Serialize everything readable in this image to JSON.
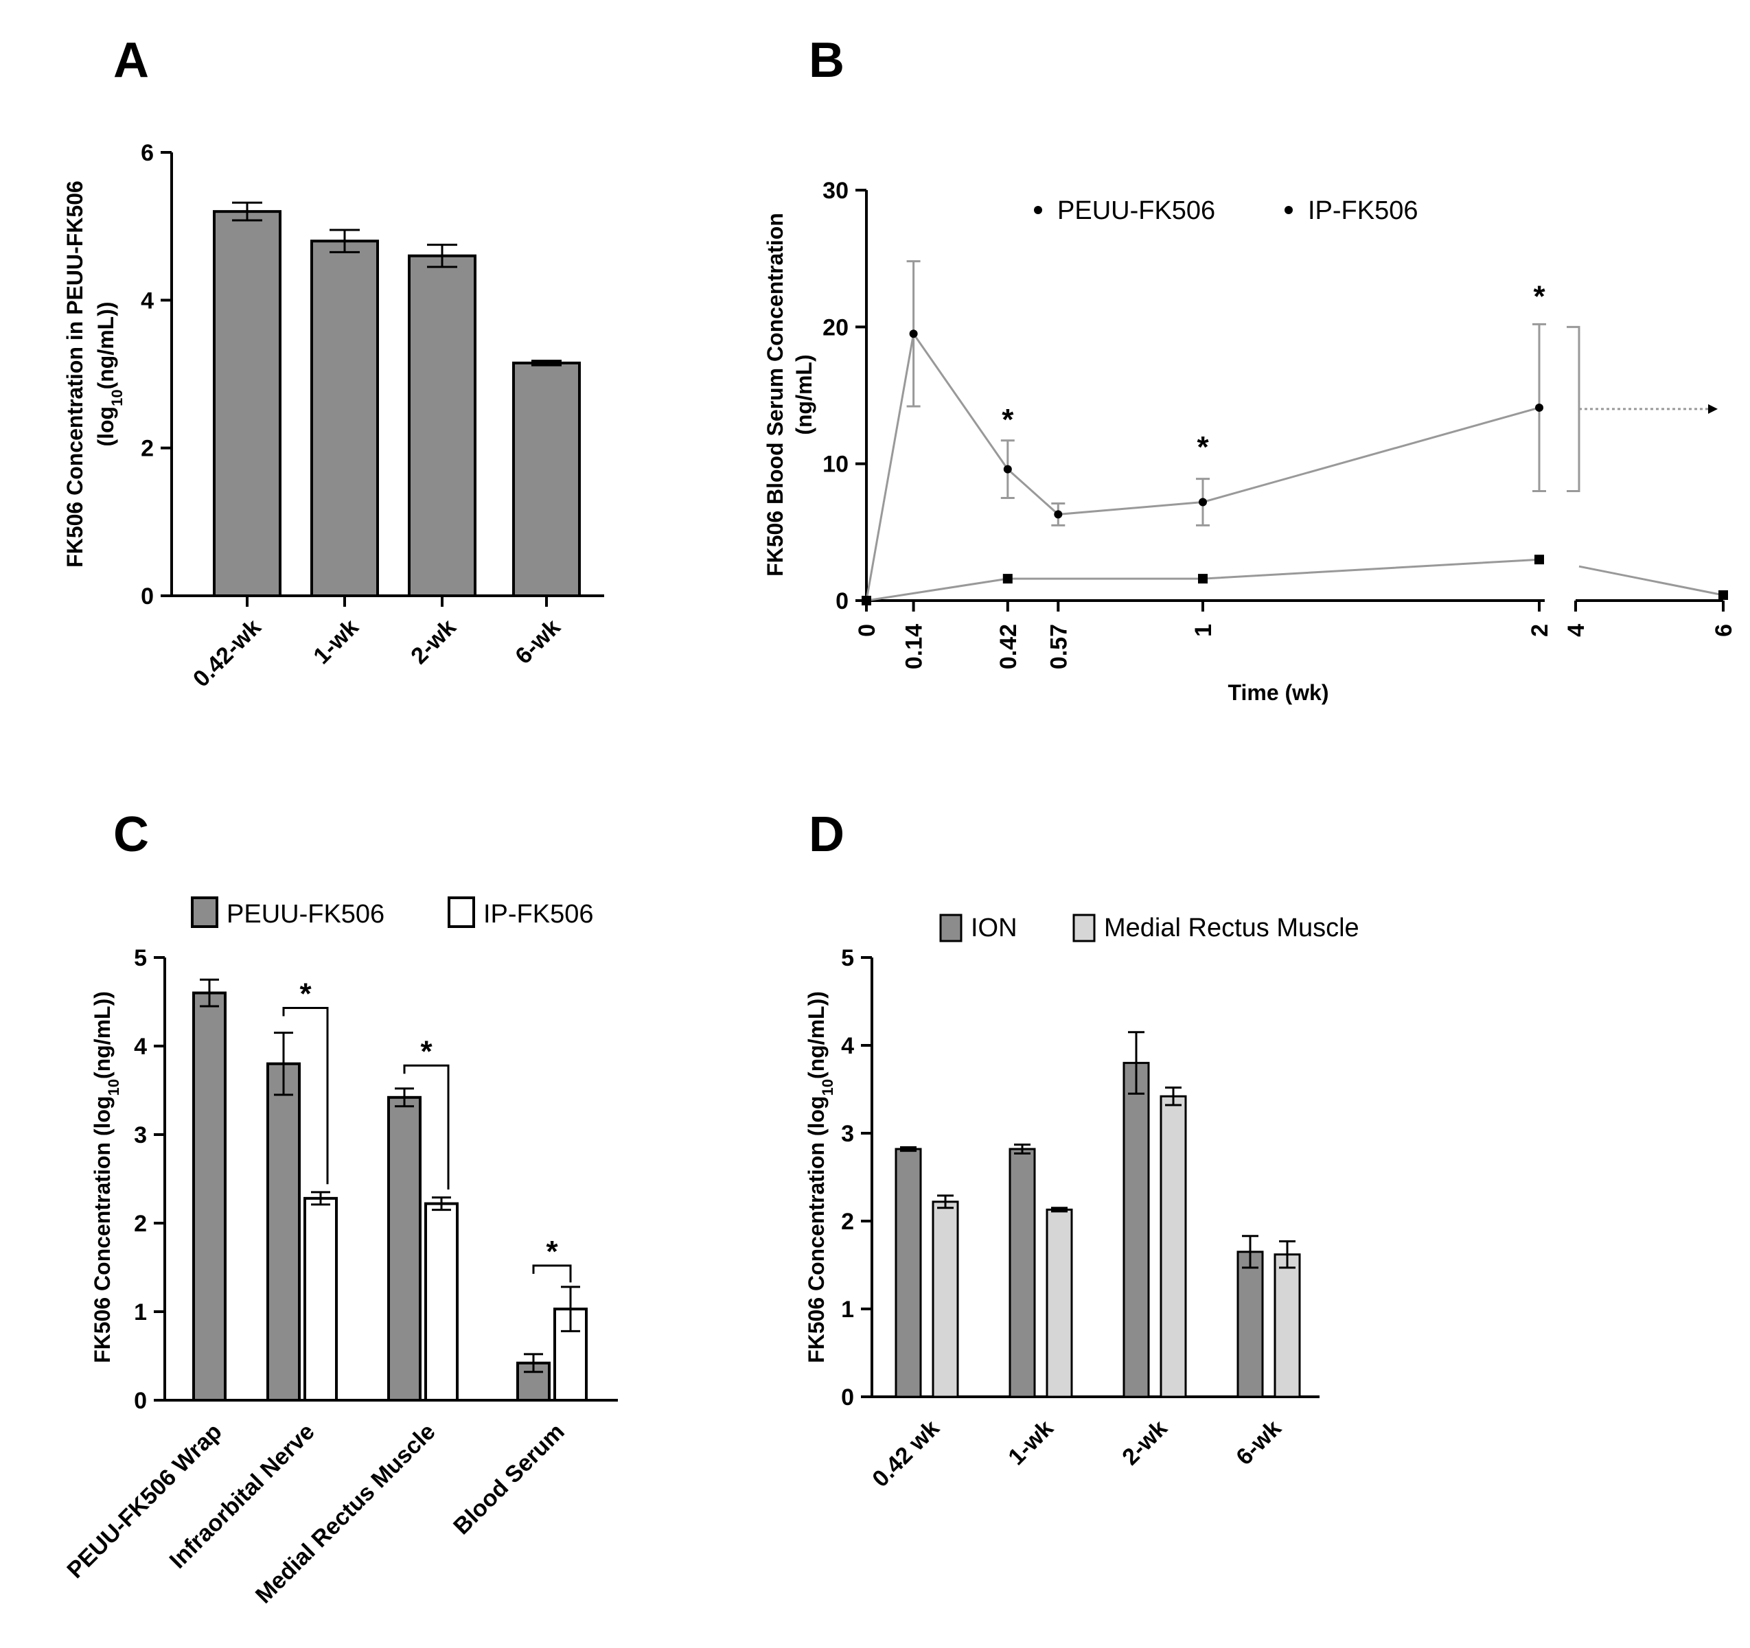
{
  "chart_data": [
    {
      "panel": "A",
      "type": "bar",
      "categories": [
        "0.42-wk",
        "1-wk",
        "2-wk",
        "6-wk"
      ],
      "values": [
        5.2,
        4.8,
        4.6,
        3.15
      ],
      "errors": [
        0.12,
        0.15,
        0.15,
        0.03
      ],
      "ylabel_line1": "FK506 Concentration in PEUU-FK506",
      "ylabel_line2": "(log",
      "ylabel_sub": "10",
      "ylabel_line2_end": "(ng/mL))",
      "ylim": [
        0,
        6
      ],
      "yticks": [
        "0",
        "2",
        "4",
        "6"
      ],
      "colors": {
        "bar": "#8c8c8c"
      }
    },
    {
      "panel": "B",
      "type": "line",
      "ylabel_line1": "FK506 Blood Serum Concentration",
      "ylabel_line2": "(ng/mL)",
      "xlabel": "Time (wk)",
      "ylim": [
        0,
        30
      ],
      "yticks": [
        "0",
        "10",
        "20",
        "30"
      ],
      "xticks": [
        "0",
        "0.14",
        "0.42",
        "0.57",
        "1",
        "2",
        "4",
        "6"
      ],
      "series": [
        {
          "name": "PEUU-FK506",
          "x": [
            0,
            0.42,
            1,
            2,
            6
          ],
          "y": [
            0,
            1.6,
            1.6,
            3.0,
            0.4
          ],
          "errors": [
            0,
            0.2,
            0.3,
            0.4,
            0.1
          ]
        },
        {
          "name": "IP-FK506",
          "x": [
            0,
            0.14,
            0.42,
            0.57,
            1,
            2
          ],
          "y": [
            0,
            19.5,
            9.6,
            6.3,
            7.2,
            14.1
          ],
          "errors": [
            0,
            5.3,
            2.1,
            0.8,
            1.7,
            6.1
          ],
          "extrapolated_to": 6
        }
      ],
      "significance": [
        {
          "x": 0.42,
          "label": "*"
        },
        {
          "x": 1,
          "label": "*"
        },
        {
          "x": 2,
          "label": "*"
        }
      ]
    },
    {
      "panel": "C",
      "type": "bar",
      "categories": [
        "PEUU-FK506 Wrap",
        "Infraorbital Nerve",
        "Medial Rectus Muscle",
        "Blood Serum"
      ],
      "series": [
        {
          "name": "PEUU-FK506",
          "values": [
            4.6,
            3.8,
            3.42,
            0.42
          ],
          "errors": [
            0.15,
            0.35,
            0.1,
            0.1
          ],
          "color": "#8c8c8c"
        },
        {
          "name": "IP-FK506",
          "values": [
            null,
            2.28,
            2.22,
            1.03
          ],
          "errors": [
            null,
            0.07,
            0.07,
            0.25
          ],
          "color": "#ffffff"
        }
      ],
      "significance": [
        {
          "category": "Infraorbital Nerve",
          "label": "*"
        },
        {
          "category": "Medial Rectus Muscle",
          "label": "*"
        },
        {
          "category": "Blood Serum",
          "label": "*"
        }
      ],
      "ylabel_start": "FK506 Concentration (log",
      "ylabel_sub": "10",
      "ylabel_end": "(ng/mL))",
      "ylim": [
        0,
        5
      ],
      "yticks": [
        "0",
        "1",
        "2",
        "3",
        "4",
        "5"
      ],
      "legend_position": "top"
    },
    {
      "panel": "D",
      "type": "bar",
      "categories": [
        "0.42 wk",
        "1-wk",
        "2-wk",
        "6-wk"
      ],
      "series": [
        {
          "name": "ION",
          "values": [
            2.82,
            2.82,
            3.8,
            1.65
          ],
          "errors": [
            0.02,
            0.05,
            0.35,
            0.18
          ],
          "color": "#8c8c8c"
        },
        {
          "name": "Medial Rectus Muscle",
          "values": [
            2.22,
            2.13,
            3.42,
            1.62
          ],
          "errors": [
            0.07,
            0.02,
            0.1,
            0.15
          ],
          "color": "#d6d6d6"
        }
      ],
      "ylabel_start": "FK506 Concentration (log",
      "ylabel_sub": "10",
      "ylabel_end": "(ng/mL))",
      "ylim": [
        0,
        5
      ],
      "yticks": [
        "0",
        "1",
        "2",
        "3",
        "4",
        "5"
      ],
      "legend_position": "top"
    }
  ]
}
